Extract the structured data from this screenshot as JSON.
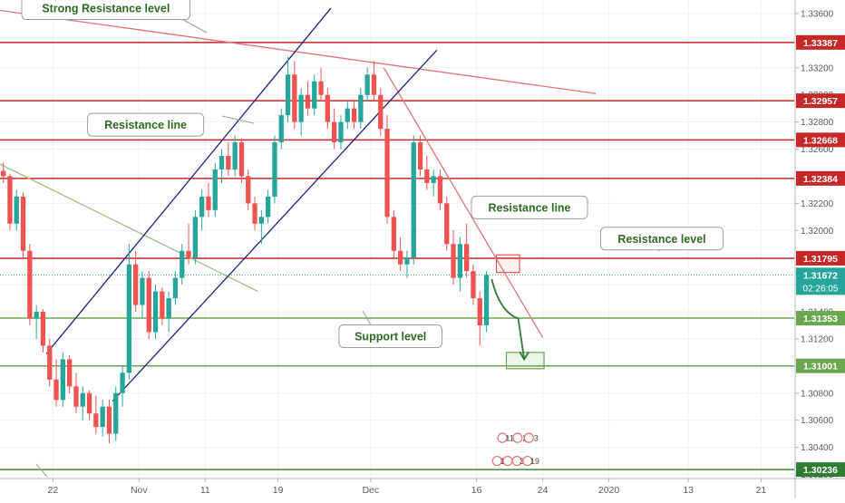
{
  "chart_data": {
    "type": "candlestick",
    "symbol_hint": "",
    "yaxis": {
      "range": [
        1.3017,
        1.337
      ],
      "ticks": [
        "1.33600",
        "1.33400",
        "1.33200",
        "1.33000",
        "1.32800",
        "1.32600",
        "1.32400",
        "1.32200",
        "1.32000",
        "1.31800",
        "1.31600",
        "1.31400",
        "1.31200",
        "1.31000",
        "1.30800",
        "1.30600",
        "1.30400",
        "1.30200"
      ]
    },
    "xaxis": {
      "range": [
        0,
        120
      ],
      "ticks": [
        {
          "label": "22",
          "x": 8
        },
        {
          "label": "Nov",
          "x": 21
        },
        {
          "label": "11",
          "x": 31
        },
        {
          "label": "19",
          "x": 42
        },
        {
          "label": "Dec",
          "x": 56
        },
        {
          "label": "16",
          "x": 72
        },
        {
          "label": "24",
          "x": 82
        },
        {
          "label": "2020",
          "x": 92
        },
        {
          "label": "13",
          "x": 104
        },
        {
          "label": "21",
          "x": 115
        }
      ]
    },
    "grid": true,
    "price_levels": [
      {
        "value": 1.33387,
        "label": "1.33387",
        "role": "resistance",
        "color": "#c62828"
      },
      {
        "value": 1.32957,
        "label": "1.32957",
        "role": "resistance",
        "color": "#c62828"
      },
      {
        "value": 1.32668,
        "label": "1.32668",
        "role": "resistance",
        "color": "#c62828"
      },
      {
        "value": 1.32384,
        "label": "1.32384",
        "role": "resistance",
        "color": "#c62828"
      },
      {
        "value": 1.31795,
        "label": "1.31795",
        "role": "resistance",
        "color": "#c62828"
      },
      {
        "value": 1.31353,
        "label": "1.31353",
        "role": "support",
        "color": "#6aa84f"
      },
      {
        "value": 1.31001,
        "label": "1.31001",
        "role": "support",
        "color": "#6aa84f"
      },
      {
        "value": 1.30236,
        "label": "1.30236",
        "role": "support",
        "color": "#3d8b2f"
      }
    ],
    "last_price": {
      "value": 1.31672,
      "label": "1.31672",
      "countdown": "02:26:05",
      "color": "#26a69a"
    },
    "trend_lines": [
      {
        "name": "strong-resistance-trend",
        "color": "#e57373",
        "points": [
          [
            -1,
            1.3363
          ],
          [
            90,
            1.3301
          ]
        ]
      },
      {
        "name": "descending-resistance",
        "color": "#e57373",
        "points": [
          [
            58,
            1.332
          ],
          [
            82,
            1.3121
          ]
        ]
      },
      {
        "name": "green-trend",
        "color": "#93c47d",
        "points": [
          [
            0,
            1.3249
          ],
          [
            39,
            1.3155
          ]
        ]
      },
      {
        "name": "channel-upper",
        "color": "#1a237e",
        "points": [
          [
            7,
            1.3109
          ],
          [
            50,
            1.3364
          ]
        ]
      },
      {
        "name": "channel-lower",
        "color": "#1a237e",
        "points": [
          [
            17,
            1.3074
          ],
          [
            66,
            1.3333
          ]
        ]
      }
    ],
    "annotations": [
      {
        "text": "Strong Resistance level",
        "x": 16,
        "y": 1.3364
      },
      {
        "text": "Resistance line",
        "x": 22,
        "y": 1.3278
      },
      {
        "text": "Resistance line",
        "x": 80,
        "y": 1.3217
      },
      {
        "text": "Resistance level",
        "x": 100,
        "y": 1.3194
      },
      {
        "text": "Support level",
        "x": 59,
        "y": 1.3122
      }
    ],
    "projection": {
      "points": [
        [
          74.3,
          1.3164
        ],
        [
          75.5,
          1.314
        ],
        [
          78.3,
          1.3135
        ],
        [
          79.2,
          1.3105
        ]
      ],
      "target_box": [
        [
          76.5,
          1.311
        ],
        [
          82.2,
          1.3098
        ]
      ],
      "breakout_box": [
        [
          75,
          1.3182
        ],
        [
          78.5,
          1.3169
        ]
      ]
    },
    "calendar_badges": [
      {
        "text": "11",
        "x": 77.0,
        "y": 1.3047
      },
      {
        "text": "2",
        "x": 79.3,
        "y": 1.3047
      },
      {
        "text": "3",
        "x": 81.0,
        "y": 1.3047
      },
      {
        "text": "11",
        "x": 76.2,
        "y": 1.303
      },
      {
        "text": "5",
        "x": 77.8,
        "y": 1.303
      },
      {
        "text": "39",
        "x": 79.2,
        "y": 1.303
      },
      {
        "text": "19",
        "x": 80.8,
        "y": 1.303
      }
    ],
    "candles": [
      {
        "t": 0,
        "o": 1.3244,
        "h": 1.325,
        "l": 1.3235,
        "c": 1.324
      },
      {
        "t": 1,
        "o": 1.324,
        "h": 1.3242,
        "l": 1.32,
        "c": 1.3205
      },
      {
        "t": 2,
        "o": 1.3205,
        "h": 1.323,
        "l": 1.32,
        "c": 1.3225
      },
      {
        "t": 3,
        "o": 1.3225,
        "h": 1.3228,
        "l": 1.318,
        "c": 1.3185
      },
      {
        "t": 4,
        "o": 1.3185,
        "h": 1.319,
        "l": 1.313,
        "c": 1.3135
      },
      {
        "t": 5,
        "o": 1.3135,
        "h": 1.3145,
        "l": 1.312,
        "c": 1.314
      },
      {
        "t": 6,
        "o": 1.314,
        "h": 1.3142,
        "l": 1.311,
        "c": 1.3115
      },
      {
        "t": 7,
        "o": 1.3115,
        "h": 1.312,
        "l": 1.3085,
        "c": 1.309
      },
      {
        "t": 8,
        "o": 1.309,
        "h": 1.3105,
        "l": 1.307,
        "c": 1.3075
      },
      {
        "t": 9,
        "o": 1.3075,
        "h": 1.311,
        "l": 1.307,
        "c": 1.3105
      },
      {
        "t": 10,
        "o": 1.3105,
        "h": 1.3108,
        "l": 1.308,
        "c": 1.3085
      },
      {
        "t": 11,
        "o": 1.3085,
        "h": 1.3095,
        "l": 1.3065,
        "c": 1.307
      },
      {
        "t": 12,
        "o": 1.307,
        "h": 1.3085,
        "l": 1.306,
        "c": 1.308
      },
      {
        "t": 13,
        "o": 1.308,
        "h": 1.3082,
        "l": 1.306,
        "c": 1.3065
      },
      {
        "t": 14,
        "o": 1.3065,
        "h": 1.3078,
        "l": 1.305,
        "c": 1.3055
      },
      {
        "t": 15,
        "o": 1.3055,
        "h": 1.3075,
        "l": 1.3048,
        "c": 1.307
      },
      {
        "t": 16,
        "o": 1.307,
        "h": 1.3075,
        "l": 1.3043,
        "c": 1.305
      },
      {
        "t": 17,
        "o": 1.305,
        "h": 1.3085,
        "l": 1.3045,
        "c": 1.308
      },
      {
        "t": 18,
        "o": 1.308,
        "h": 1.31,
        "l": 1.307,
        "c": 1.3095
      },
      {
        "t": 19,
        "o": 1.3095,
        "h": 1.319,
        "l": 1.309,
        "c": 1.3175
      },
      {
        "t": 20,
        "o": 1.3175,
        "h": 1.3185,
        "l": 1.314,
        "c": 1.3145
      },
      {
        "t": 21,
        "o": 1.3145,
        "h": 1.317,
        "l": 1.3135,
        "c": 1.3165
      },
      {
        "t": 22,
        "o": 1.3165,
        "h": 1.317,
        "l": 1.312,
        "c": 1.3125
      },
      {
        "t": 23,
        "o": 1.3125,
        "h": 1.316,
        "l": 1.312,
        "c": 1.3155
      },
      {
        "t": 24,
        "o": 1.3155,
        "h": 1.3158,
        "l": 1.313,
        "c": 1.3135
      },
      {
        "t": 25,
        "o": 1.3135,
        "h": 1.3155,
        "l": 1.3125,
        "c": 1.315
      },
      {
        "t": 26,
        "o": 1.315,
        "h": 1.317,
        "l": 1.3145,
        "c": 1.3165
      },
      {
        "t": 27,
        "o": 1.3165,
        "h": 1.319,
        "l": 1.316,
        "c": 1.3185
      },
      {
        "t": 28,
        "o": 1.3185,
        "h": 1.3205,
        "l": 1.3175,
        "c": 1.318
      },
      {
        "t": 29,
        "o": 1.318,
        "h": 1.3215,
        "l": 1.3175,
        "c": 1.321
      },
      {
        "t": 30,
        "o": 1.321,
        "h": 1.323,
        "l": 1.32,
        "c": 1.3225
      },
      {
        "t": 31,
        "o": 1.3225,
        "h": 1.3235,
        "l": 1.321,
        "c": 1.3215
      },
      {
        "t": 32,
        "o": 1.3215,
        "h": 1.325,
        "l": 1.321,
        "c": 1.3245
      },
      {
        "t": 33,
        "o": 1.3245,
        "h": 1.326,
        "l": 1.3235,
        "c": 1.3255
      },
      {
        "t": 34,
        "o": 1.3255,
        "h": 1.3265,
        "l": 1.324,
        "c": 1.3245
      },
      {
        "t": 35,
        "o": 1.3245,
        "h": 1.327,
        "l": 1.324,
        "c": 1.3265
      },
      {
        "t": 36,
        "o": 1.3265,
        "h": 1.3268,
        "l": 1.3235,
        "c": 1.324
      },
      {
        "t": 37,
        "o": 1.324,
        "h": 1.3245,
        "l": 1.3215,
        "c": 1.322
      },
      {
        "t": 38,
        "o": 1.322,
        "h": 1.3225,
        "l": 1.32,
        "c": 1.3205
      },
      {
        "t": 39,
        "o": 1.3205,
        "h": 1.3215,
        "l": 1.319,
        "c": 1.321
      },
      {
        "t": 40,
        "o": 1.321,
        "h": 1.323,
        "l": 1.3205,
        "c": 1.3225
      },
      {
        "t": 41,
        "o": 1.3225,
        "h": 1.327,
        "l": 1.322,
        "c": 1.3265
      },
      {
        "t": 42,
        "o": 1.3265,
        "h": 1.329,
        "l": 1.326,
        "c": 1.3285
      },
      {
        "t": 43,
        "o": 1.3285,
        "h": 1.3328,
        "l": 1.328,
        "c": 1.3315
      },
      {
        "t": 44,
        "o": 1.3315,
        "h": 1.3325,
        "l": 1.3275,
        "c": 1.328
      },
      {
        "t": 45,
        "o": 1.328,
        "h": 1.3305,
        "l": 1.327,
        "c": 1.33
      },
      {
        "t": 46,
        "o": 1.33,
        "h": 1.331,
        "l": 1.3285,
        "c": 1.329
      },
      {
        "t": 47,
        "o": 1.329,
        "h": 1.3315,
        "l": 1.3285,
        "c": 1.331
      },
      {
        "t": 48,
        "o": 1.331,
        "h": 1.332,
        "l": 1.3295,
        "c": 1.33
      },
      {
        "t": 49,
        "o": 1.33,
        "h": 1.3305,
        "l": 1.3275,
        "c": 1.328
      },
      {
        "t": 50,
        "o": 1.328,
        "h": 1.329,
        "l": 1.326,
        "c": 1.3265
      },
      {
        "t": 51,
        "o": 1.3265,
        "h": 1.3285,
        "l": 1.326,
        "c": 1.328
      },
      {
        "t": 52,
        "o": 1.328,
        "h": 1.3295,
        "l": 1.3275,
        "c": 1.329
      },
      {
        "t": 53,
        "o": 1.329,
        "h": 1.3295,
        "l": 1.3275,
        "c": 1.328
      },
      {
        "t": 54,
        "o": 1.328,
        "h": 1.3305,
        "l": 1.3275,
        "c": 1.33
      },
      {
        "t": 55,
        "o": 1.33,
        "h": 1.332,
        "l": 1.3295,
        "c": 1.3315
      },
      {
        "t": 56,
        "o": 1.3315,
        "h": 1.3325,
        "l": 1.3295,
        "c": 1.33
      },
      {
        "t": 57,
        "o": 1.33,
        "h": 1.3305,
        "l": 1.327,
        "c": 1.3275
      },
      {
        "t": 58,
        "o": 1.3275,
        "h": 1.3285,
        "l": 1.3205,
        "c": 1.321
      },
      {
        "t": 59,
        "o": 1.321,
        "h": 1.3215,
        "l": 1.318,
        "c": 1.3185
      },
      {
        "t": 60,
        "o": 1.3185,
        "h": 1.3195,
        "l": 1.317,
        "c": 1.3175
      },
      {
        "t": 61,
        "o": 1.3175,
        "h": 1.3185,
        "l": 1.3165,
        "c": 1.318
      },
      {
        "t": 62,
        "o": 1.318,
        "h": 1.327,
        "l": 1.3175,
        "c": 1.3265
      },
      {
        "t": 63,
        "o": 1.3265,
        "h": 1.327,
        "l": 1.324,
        "c": 1.3245
      },
      {
        "t": 64,
        "o": 1.3245,
        "h": 1.3255,
        "l": 1.323,
        "c": 1.3235
      },
      {
        "t": 65,
        "o": 1.3235,
        "h": 1.3245,
        "l": 1.3225,
        "c": 1.324
      },
      {
        "t": 66,
        "o": 1.324,
        "h": 1.3245,
        "l": 1.3215,
        "c": 1.322
      },
      {
        "t": 67,
        "o": 1.322,
        "h": 1.3225,
        "l": 1.3185,
        "c": 1.319
      },
      {
        "t": 68,
        "o": 1.319,
        "h": 1.32,
        "l": 1.316,
        "c": 1.3165
      },
      {
        "t": 69,
        "o": 1.3165,
        "h": 1.3195,
        "l": 1.3155,
        "c": 1.319
      },
      {
        "t": 70,
        "o": 1.319,
        "h": 1.3205,
        "l": 1.3165,
        "c": 1.317
      },
      {
        "t": 71,
        "o": 1.317,
        "h": 1.3175,
        "l": 1.3145,
        "c": 1.315
      },
      {
        "t": 72,
        "o": 1.315,
        "h": 1.3155,
        "l": 1.3115,
        "c": 1.313
      },
      {
        "t": 73,
        "o": 1.313,
        "h": 1.317,
        "l": 1.3125,
        "c": 1.31672
      }
    ]
  }
}
